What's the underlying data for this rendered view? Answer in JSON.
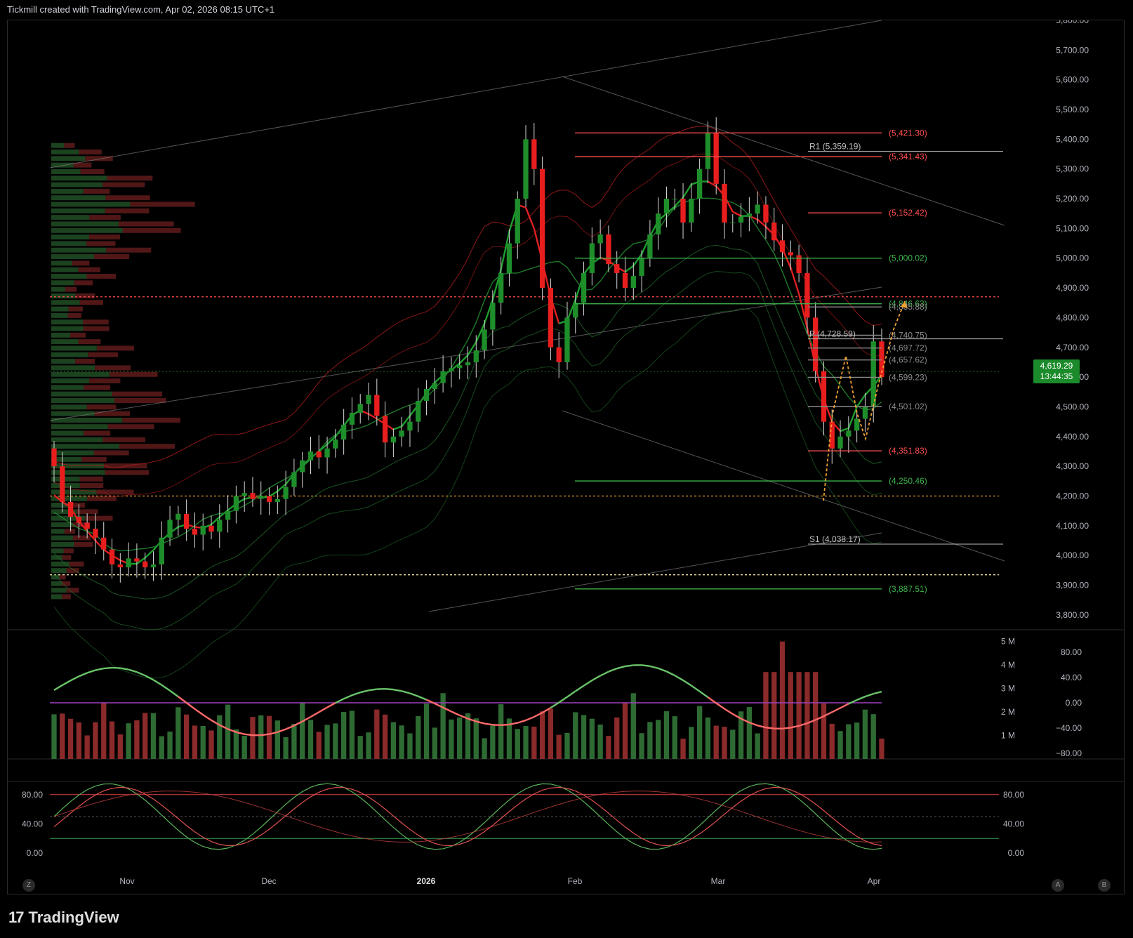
{
  "header": {
    "text": "Tickmill created with TradingView.com, Apr 02, 2026 08:15 UTC+1"
  },
  "footer": {
    "brand": "TradingView"
  },
  "colors": {
    "up": "#1e8e2a",
    "down": "#e81e1e",
    "red_level": "#ff4d4d",
    "green_level": "#3bb34a",
    "orange": "#f0a030",
    "purple": "#a040c0"
  },
  "chart_data": {
    "type": "candlestick",
    "price_axis": {
      "labels": [
        "5,800.00",
        "5,700.00",
        "5,600.00",
        "5,500.00",
        "5,400.00",
        "5,300.00",
        "5,200.00",
        "5,100.00",
        "5,000.00",
        "4,900.00",
        "4,800.00",
        "4,700.00",
        "4,600.00",
        "4,500.00",
        "4,400.00",
        "4,300.00",
        "4,200.00",
        "4,100.00",
        "4,000.00",
        "3,900.00",
        "3,800.00"
      ],
      "ylim": [
        3750,
        5800
      ]
    },
    "time_axis": {
      "labels": [
        "Nov",
        "Dec",
        "2026",
        "Feb",
        "Mar",
        "Apr"
      ]
    },
    "last_price": {
      "price": "4,619.29",
      "countdown": "13:44:35"
    },
    "levels": [
      {
        "label": "(5,421.30)",
        "price": 5421.3,
        "kind": "red"
      },
      {
        "label": "(5,341.43)",
        "price": 5341.43,
        "kind": "red"
      },
      {
        "label": "(5,152.42)",
        "price": 5152.42,
        "kind": "red"
      },
      {
        "label": "(5,000.02)",
        "price": 5000.02,
        "kind": "green"
      },
      {
        "label": "(4,846.63)",
        "price": 4846.63,
        "kind": "green"
      },
      {
        "label": "(4,835.88)",
        "price": 4835.88,
        "kind": "gray"
      },
      {
        "label": "(4,740.75)",
        "price": 4740.75,
        "kind": "gray"
      },
      {
        "label": "(4,697.72)",
        "price": 4697.72,
        "kind": "gray"
      },
      {
        "label": "(4,657.62)",
        "price": 4657.62,
        "kind": "gray"
      },
      {
        "label": "(4,599.23)",
        "price": 4599.23,
        "kind": "gray"
      },
      {
        "label": "(4,501.02)",
        "price": 4501.02,
        "kind": "gray"
      },
      {
        "label": "(4,351.83)",
        "price": 4351.83,
        "kind": "red"
      },
      {
        "label": "(4,250.46)",
        "price": 4250.46,
        "kind": "green"
      },
      {
        "label": "(3,887.51)",
        "price": 3887.51,
        "kind": "green"
      }
    ],
    "pivots": [
      {
        "label": "R1 (5,359.19)",
        "price": 5359.19
      },
      {
        "label": "P (4,728.59)",
        "price": 4728.59
      },
      {
        "label": "S1 (4,038.17)",
        "price": 4038.17
      }
    ],
    "close_path": [
      4300,
      4180,
      4130,
      4110,
      4090,
      4060,
      4020,
      3970,
      3960,
      3990,
      3980,
      3960,
      3970,
      4060,
      4120,
      4140,
      4090,
      4070,
      4100,
      4080,
      4120,
      4150,
      4200,
      4210,
      4190,
      4200,
      4180,
      4190,
      4230,
      4280,
      4320,
      4350,
      4330,
      4360,
      4390,
      4440,
      4480,
      4510,
      4540,
      4470,
      4380,
      4400,
      4420,
      4450,
      4520,
      4560,
      4580,
      4620,
      4630,
      4640,
      4650,
      4690,
      4760,
      4850,
      4950,
      5050,
      5200,
      5400,
      5300,
      4900,
      4700,
      4650,
      4800,
      4850,
      4950,
      5050,
      5080,
      4980,
      4950,
      4900,
      4940,
      5000,
      5080,
      5150,
      5200,
      5200,
      5120,
      5200,
      5300,
      5420,
      5250,
      5120,
      5120,
      5140,
      5150,
      5180,
      5120,
      5060,
      5020,
      5010,
      4950,
      4800,
      4620,
      4450,
      4360,
      4400,
      4420,
      4460,
      4500,
      4720,
      4600
    ]
  },
  "volume_pane": {
    "axis_labels": [
      "5 M",
      "4 M",
      "3 M",
      "2 M",
      "1 M"
    ],
    "osc_labels": [
      "80.00",
      "40.00",
      "0.00",
      "−40.00",
      "−80.00"
    ]
  },
  "stoch_pane": {
    "axis_labels": [
      "80.00",
      "40.00",
      "0.00"
    ]
  },
  "x_buttons": {
    "left": "Z",
    "a": "A",
    "b": "B"
  }
}
